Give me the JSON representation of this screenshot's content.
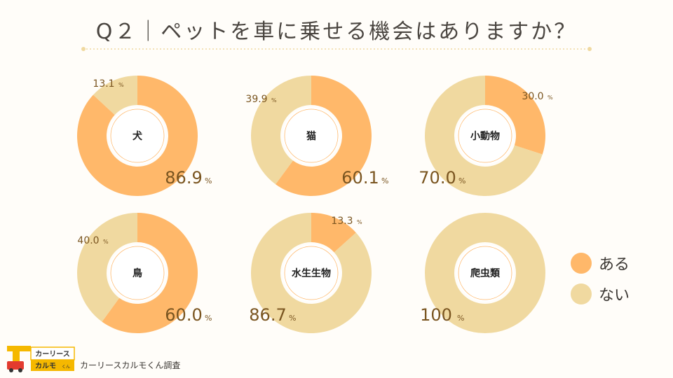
{
  "title": "Q２｜ペットを車に乗せる機会はありますか？",
  "colors": {
    "yes": "#ffb86a",
    "no": "#f0d9a0",
    "label": "#7a5520",
    "background": "#fffdf9"
  },
  "legend": {
    "yes_label": "ある",
    "no_label": "ない"
  },
  "footer": {
    "logo_line1": "カーリース",
    "logo_line2": "カルモ",
    "logo_suffix": "くん",
    "credit": "カーリースカルモくん調査"
  },
  "chart_data": [
    {
      "type": "pie",
      "category": "犬",
      "slices": [
        {
          "name": "ある",
          "value": 86.9,
          "label": "86.9"
        },
        {
          "name": "ない",
          "value": 13.1,
          "label": "13.1"
        }
      ],
      "unit": "%"
    },
    {
      "type": "pie",
      "category": "猫",
      "slices": [
        {
          "name": "ある",
          "value": 60.1,
          "label": "60.1"
        },
        {
          "name": "ない",
          "value": 39.9,
          "label": "39.9"
        }
      ],
      "unit": "%"
    },
    {
      "type": "pie",
      "category": "小動物",
      "slices": [
        {
          "name": "ある",
          "value": 30.0,
          "label": "30.0"
        },
        {
          "name": "ない",
          "value": 70.0,
          "label": "70.0"
        }
      ],
      "unit": "%"
    },
    {
      "type": "pie",
      "category": "鳥",
      "slices": [
        {
          "name": "ある",
          "value": 60.0,
          "label": "60.0"
        },
        {
          "name": "ない",
          "value": 40.0,
          "label": "40.0"
        }
      ],
      "unit": "%"
    },
    {
      "type": "pie",
      "category": "水生生物",
      "slices": [
        {
          "name": "ある",
          "value": 13.3,
          "label": "13.3"
        },
        {
          "name": "ない",
          "value": 86.7,
          "label": "86.7"
        }
      ],
      "unit": "%"
    },
    {
      "type": "pie",
      "category": "爬虫類",
      "slices": [
        {
          "name": "ある",
          "value": 0,
          "label": ""
        },
        {
          "name": "ない",
          "value": 100,
          "label": "100"
        }
      ],
      "unit": "%"
    }
  ]
}
